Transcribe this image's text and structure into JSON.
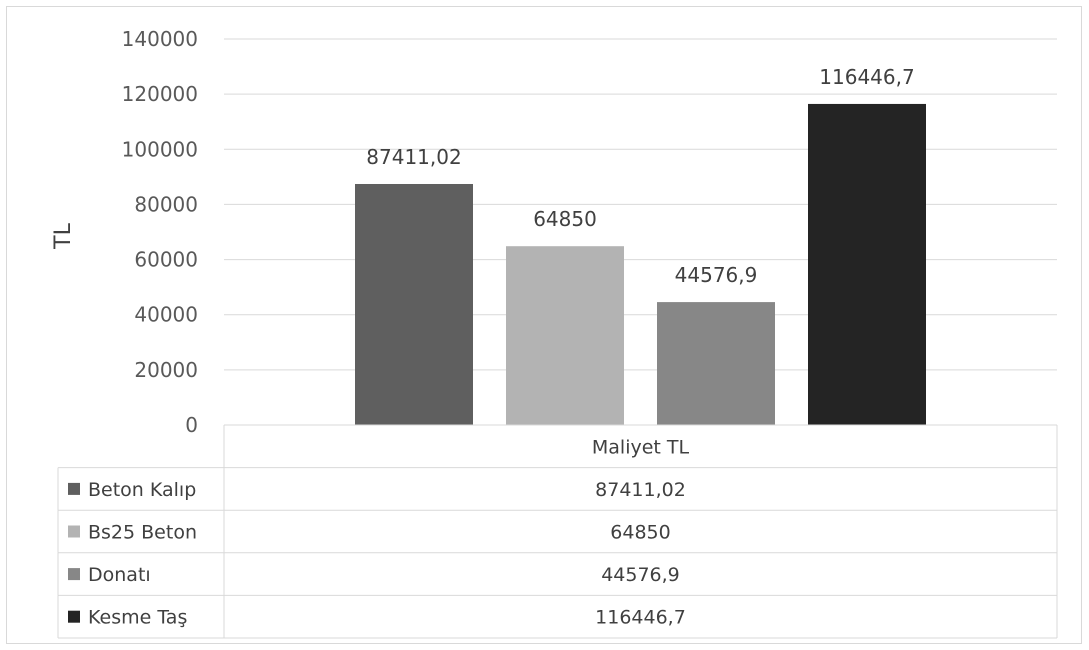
{
  "chart_data": {
    "type": "bar",
    "title": "",
    "xlabel": "",
    "ylabel": "TL",
    "ylim": [
      0,
      140000
    ],
    "y_ticks": [
      "0",
      "20000",
      "40000",
      "60000",
      "80000",
      "100000",
      "120000",
      "140000"
    ],
    "grid": true,
    "legend": "data-table-left",
    "categories": [
      "Maliyet TL"
    ],
    "series": [
      {
        "name": "Beton Kalıp",
        "values": [
          87411.02
        ],
        "label": "87411,02",
        "color": "#5f5f5f"
      },
      {
        "name": "Bs25 Beton",
        "values": [
          64850
        ],
        "label": "64850",
        "color": "#b3b3b3"
      },
      {
        "name": "Donatı",
        "values": [
          44576.9
        ],
        "label": "44576,9",
        "color": "#878787"
      },
      {
        "name": "Kesme Taş",
        "values": [
          116446.7
        ],
        "label": "116446,7",
        "color": "#242424"
      }
    ]
  }
}
